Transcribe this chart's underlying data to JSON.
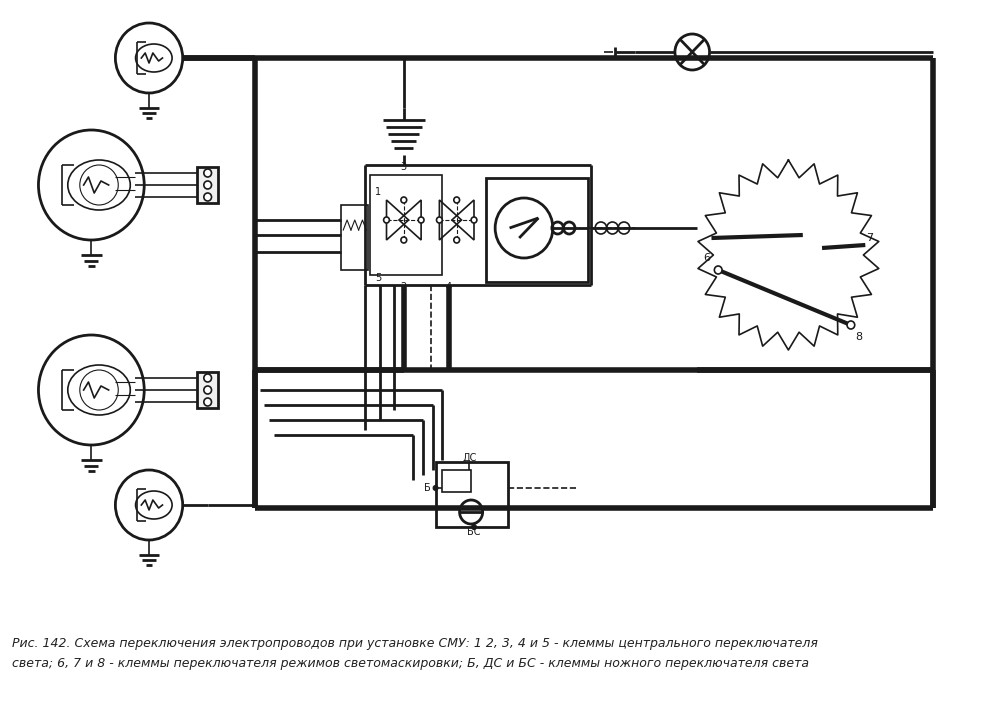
{
  "background_color": "#ffffff",
  "line_color": "#1a1a1a",
  "caption_line1": "Рис. 142. Схема переключения электропроводов при установке СМУ: 1 2, 3, 4 и 5 - клеммы центрального переключателя",
  "caption_line2": "света; 6, 7 и 8 - клеммы переключателя режимов светомаскировки; Б, ДС и БС - клеммы ножного переключателя света",
  "caption_fontsize": 9.0,
  "fig_width": 10.02,
  "fig_height": 7.14
}
